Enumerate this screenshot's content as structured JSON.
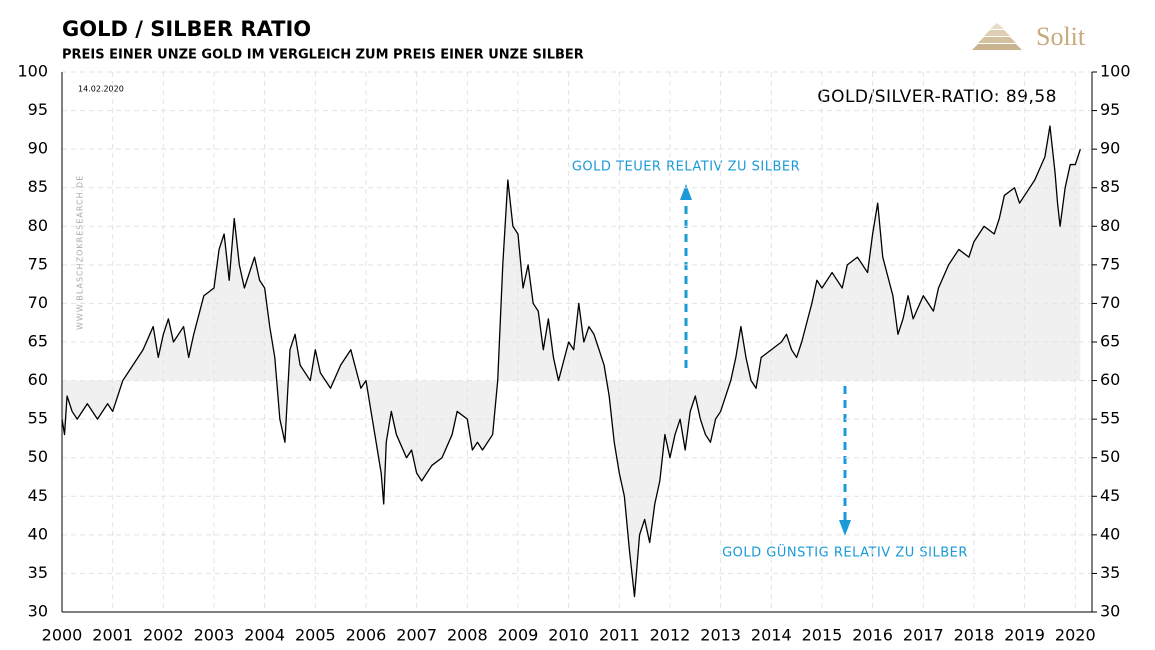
{
  "chart_data": {
    "type": "line",
    "title": "GOLD  / SILBER RATIO",
    "subtitle": "PREIS EINER UNZE GOLD IM VERGLEICH ZUM PREIS EINER UNZE SILBER",
    "date_note": "14.02.2020",
    "source_note": "WWW.BLASCHZOKRESEARCH.DE",
    "ratio_label": "GOLD/SILVER-RATIO: 89,58",
    "annotation_up": "GOLD TEUER RELATIV ZU SILBER",
    "annotation_down": "GOLD GÜNSTIG RELATIV ZU SILBER",
    "logo": "Solit",
    "reference_level": 60,
    "color": "#000000",
    "fill_color": "#f0f0f0",
    "grid": true,
    "x": [
      2000.0,
      2000.05,
      2000.1,
      2000.2,
      2000.3,
      2000.5,
      2000.7,
      2000.9,
      2001.0,
      2001.2,
      2001.4,
      2001.6,
      2001.8,
      2001.9,
      2002.0,
      2002.1,
      2002.2,
      2002.4,
      2002.5,
      2002.6,
      2002.8,
      2003.0,
      2003.1,
      2003.2,
      2003.3,
      2003.4,
      2003.5,
      2003.6,
      2003.8,
      2003.9,
      2004.0,
      2004.1,
      2004.2,
      2004.3,
      2004.4,
      2004.5,
      2004.6,
      2004.7,
      2004.9,
      2005.0,
      2005.1,
      2005.3,
      2005.5,
      2005.7,
      2005.9,
      2006.0,
      2006.1,
      2006.2,
      2006.3,
      2006.35,
      2006.4,
      2006.5,
      2006.6,
      2006.8,
      2006.9,
      2007.0,
      2007.1,
      2007.3,
      2007.5,
      2007.7,
      2007.8,
      2008.0,
      2008.1,
      2008.2,
      2008.3,
      2008.5,
      2008.6,
      2008.7,
      2008.8,
      2008.9,
      2009.0,
      2009.1,
      2009.2,
      2009.3,
      2009.4,
      2009.5,
      2009.6,
      2009.7,
      2009.8,
      2010.0,
      2010.1,
      2010.2,
      2010.3,
      2010.4,
      2010.5,
      2010.6,
      2010.7,
      2010.8,
      2010.9,
      2011.0,
      2011.1,
      2011.2,
      2011.3,
      2011.4,
      2011.5,
      2011.6,
      2011.7,
      2011.8,
      2011.9,
      2012.0,
      2012.1,
      2012.2,
      2012.3,
      2012.4,
      2012.5,
      2012.6,
      2012.7,
      2012.8,
      2012.9,
      2013.0,
      2013.2,
      2013.3,
      2013.4,
      2013.5,
      2013.6,
      2013.7,
      2013.8,
      2014.0,
      2014.2,
      2014.3,
      2014.4,
      2014.5,
      2014.6,
      2014.8,
      2014.9,
      2015.0,
      2015.2,
      2015.4,
      2015.5,
      2015.7,
      2015.9,
      2016.0,
      2016.1,
      2016.2,
      2016.4,
      2016.5,
      2016.6,
      2016.7,
      2016.8,
      2017.0,
      2017.2,
      2017.3,
      2017.5,
      2017.7,
      2017.9,
      2018.0,
      2018.2,
      2018.4,
      2018.5,
      2018.6,
      2018.8,
      2018.9,
      2019.0,
      2019.2,
      2019.4,
      2019.5,
      2019.6,
      2019.65,
      2019.7,
      2019.8,
      2019.9,
      2020.0,
      2020.1
    ],
    "values": [
      55,
      53,
      58,
      56,
      55,
      57,
      55,
      57,
      56,
      60,
      62,
      64,
      67,
      63,
      66,
      68,
      65,
      67,
      63,
      66,
      71,
      72,
      77,
      79,
      73,
      81,
      75,
      72,
      76,
      73,
      72,
      67,
      63,
      55,
      52,
      64,
      66,
      62,
      60,
      64,
      61,
      59,
      62,
      64,
      59,
      60,
      56,
      52,
      48,
      44,
      52,
      56,
      53,
      50,
      51,
      48,
      47,
      49,
      50,
      53,
      56,
      55,
      51,
      52,
      51,
      53,
      60,
      75,
      86,
      80,
      79,
      72,
      75,
      70,
      69,
      64,
      68,
      63,
      60,
      65,
      64,
      70,
      65,
      67,
      66,
      64,
      62,
      58,
      52,
      48,
      45,
      38,
      32,
      40,
      42,
      39,
      44,
      47,
      53,
      50,
      53,
      55,
      51,
      56,
      58,
      55,
      53,
      52,
      55,
      56,
      60,
      63,
      67,
      63,
      60,
      59,
      63,
      64,
      65,
      66,
      64,
      63,
      65,
      70,
      73,
      72,
      74,
      72,
      75,
      76,
      74,
      79,
      83,
      76,
      71,
      66,
      68,
      71,
      68,
      71,
      69,
      72,
      75,
      77,
      76,
      78,
      80,
      79,
      81,
      84,
      85,
      83,
      84,
      86,
      89,
      93,
      87,
      83,
      80,
      85,
      88,
      88,
      90
    ],
    "xlim": [
      2000,
      2020.33
    ],
    "xticks": [
      2000,
      2001,
      2002,
      2003,
      2004,
      2005,
      2006,
      2007,
      2008,
      2009,
      2010,
      2011,
      2012,
      2013,
      2014,
      2015,
      2016,
      2017,
      2018,
      2019,
      2020
    ],
    "ylim": [
      30,
      100
    ],
    "yticks": [
      30,
      35,
      40,
      45,
      50,
      55,
      60,
      65,
      70,
      75,
      80,
      85,
      90,
      95,
      100
    ],
    "y2lim": [
      30,
      100
    ],
    "y2ticks": [
      30,
      35,
      40,
      45,
      50,
      55,
      60,
      65,
      70,
      75,
      80,
      85,
      90,
      95,
      100
    ]
  }
}
